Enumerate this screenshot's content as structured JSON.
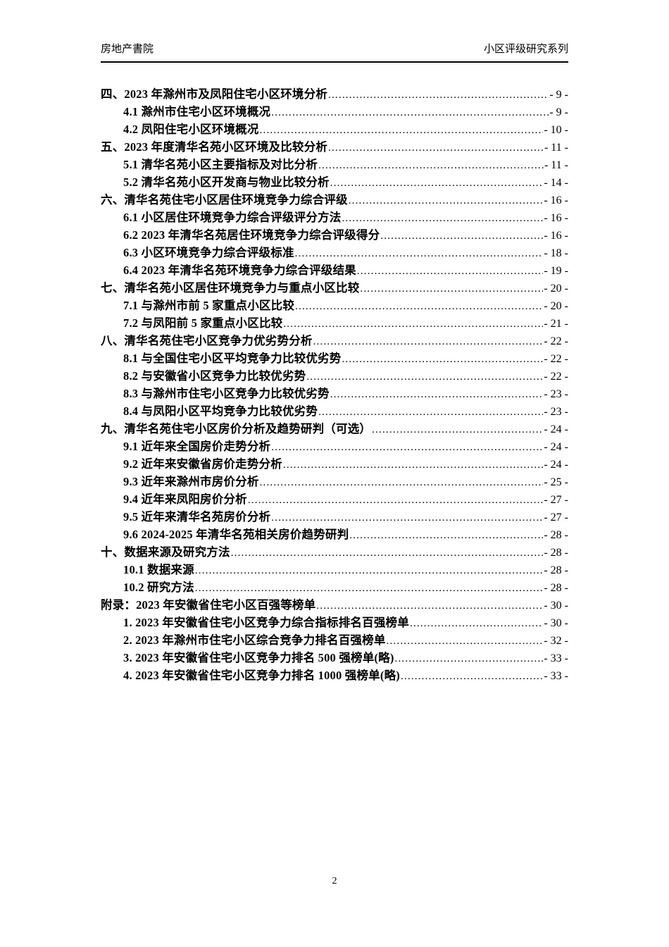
{
  "header": {
    "left_text": "房地产書院",
    "right_text": "小区评级研究系列"
  },
  "toc": {
    "entries": [
      {
        "level": 1,
        "title": "四、2023 年滁州市及凤阳住宅小区环境分析",
        "page": "- 9 -"
      },
      {
        "level": 2,
        "title": "4.1 滁州市住宅小区环境概况",
        "page": "- 9 -"
      },
      {
        "level": 2,
        "title": "4.2 凤阳住宅小区环境概况",
        "page": "- 10 -"
      },
      {
        "level": 1,
        "title": "五、2023 年度清华名苑小区环境及比较分析",
        "page": "- 11 -"
      },
      {
        "level": 2,
        "title": "5.1 清华名苑小区主要指标及对比分析",
        "page": "- 11 -"
      },
      {
        "level": 2,
        "title": "5.2 清华名苑小区开发商与物业比较分析",
        "page": "- 14 -"
      },
      {
        "level": 1,
        "title": "六、清华名苑住宅小区居住环境竞争力综合评级",
        "page": "- 16 -"
      },
      {
        "level": 2,
        "title": "6.1 小区居住环境竞争力综合评级评分方法",
        "page": "- 16 -"
      },
      {
        "level": 2,
        "title": "6.2 2023 年清华名苑居住环境竞争力综合评级得分",
        "page": "- 16 -"
      },
      {
        "level": 2,
        "title": "6.3 小区环境竞争力综合评级标准",
        "page": "- 18 -"
      },
      {
        "level": 2,
        "title": "6.4 2023 年清华名苑环境竞争力综合评级结果",
        "page": "- 19 -"
      },
      {
        "level": 1,
        "title": "七、清华名苑小区居住环境竞争力与重点小区比较",
        "page": "- 20 -"
      },
      {
        "level": 2,
        "title": "7.1 与滁州市前 5 家重点小区比较",
        "page": "- 20 -"
      },
      {
        "level": 2,
        "title": "7.2 与凤阳前 5 家重点小区比较",
        "page": "- 21 -"
      },
      {
        "level": 1,
        "title": "八、清华名苑住宅小区竞争力优劣势分析",
        "page": "- 22 -"
      },
      {
        "level": 2,
        "title": "8.1 与全国住宅小区平均竞争力比较优劣势",
        "page": "- 22 -"
      },
      {
        "level": 2,
        "title": "8.2 与安徽省小区竞争力比较优劣势",
        "page": "- 22 -"
      },
      {
        "level": 2,
        "title": "8.3 与滁州市住宅小区竞争力比较优劣势",
        "page": "- 23 -"
      },
      {
        "level": 2,
        "title": "8.4 与凤阳小区平均竞争力比较优劣势",
        "page": "- 23 -"
      },
      {
        "level": 1,
        "title": "九、清华名苑住宅小区房价分析及趋势研判（可选）",
        "page": "- 24 -"
      },
      {
        "level": 2,
        "title": "9.1 近年来全国房价走势分析",
        "page": "- 24 -"
      },
      {
        "level": 2,
        "title": "9.2 近年来安徽省房价走势分析",
        "page": "- 24 -"
      },
      {
        "level": 2,
        "title": "9.3 近年来滁州市房价分析",
        "page": "- 25 -"
      },
      {
        "level": 2,
        "title": "9.4 近年来凤阳房价分析",
        "page": "- 27 -"
      },
      {
        "level": 2,
        "title": "9.5 近年来清华名苑房价分析",
        "page": "- 27 -"
      },
      {
        "level": 2,
        "title": "9.6 2024-2025 年清华名苑相关房价趋势研判",
        "page": "- 28 -"
      },
      {
        "level": 1,
        "title": "十、数据来源及研究方法",
        "page": "- 28 -"
      },
      {
        "level": 2,
        "title": "10.1 数据来源",
        "page": "- 28 -"
      },
      {
        "level": 2,
        "title": "10.2 研究方法",
        "page": "- 28 -"
      },
      {
        "level": 1,
        "title": "附录：2023 年安徽省住宅小区百强等榜单",
        "page": "- 30 -"
      },
      {
        "level": 2,
        "title": "1. 2023 年安徽省住宅小区竞争力综合指标排名百强榜单",
        "page": "- 30 -"
      },
      {
        "level": 2,
        "title": "2. 2023 年滁州市住宅小区综合竞争力排名百强榜单",
        "page": "- 32 -"
      },
      {
        "level": 2,
        "title": "3. 2023 年安徽省住宅小区竞争力排名 500 强榜单(略)",
        "page": "- 33 -"
      },
      {
        "level": 2,
        "title": "4. 2023 年安徽省住宅小区竞争力排名 1000 强榜单(略)",
        "page": "- 33 -"
      }
    ]
  },
  "footer": {
    "page_number": "2"
  }
}
